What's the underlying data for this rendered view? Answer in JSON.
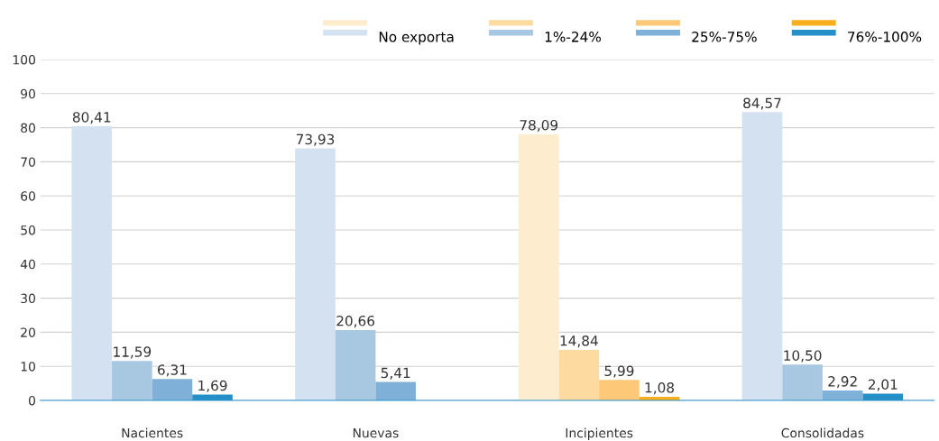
{
  "chart_data": {
    "type": "bar",
    "categories": [
      "Nacientes",
      "Nuevas",
      "Incipientes",
      "Consolidadas"
    ],
    "series": [
      {
        "name": "No exporta",
        "color": "#d3e1f0",
        "colors": [
          "#d3e1f0",
          "#d3e1f0",
          "#fdeccd",
          "#d3e1f0"
        ],
        "values": [
          80.41,
          73.93,
          78.09,
          84.57
        ],
        "value_labels": [
          "80,41",
          "73,93",
          "78,09",
          "84,57"
        ]
      },
      {
        "name": "1%-24%",
        "color": "#a8c8e2",
        "colors": [
          "#a8c8e2",
          "#a8c8e2",
          "#fddba0",
          "#a8c8e2"
        ],
        "values": [
          11.59,
          20.66,
          14.84,
          10.5
        ],
        "value_labels": [
          "11,59",
          "20,66",
          "14,84",
          "10,50"
        ]
      },
      {
        "name": "25%-75%",
        "color": "#7fb0d8",
        "colors": [
          "#7fb0d8",
          "#7fb0d8",
          "#fdc978",
          "#7fb0d8"
        ],
        "values": [
          6.31,
          5.41,
          5.99,
          2.92
        ],
        "value_labels": [
          "6,31",
          "5,41",
          "5,99",
          "2,92"
        ]
      },
      {
        "name": "76%-100%",
        "color": "#2590c8",
        "colors": [
          "#2590c8",
          "#2590c8",
          "#f9ae1e",
          "#2590c8"
        ],
        "values": [
          1.69,
          null,
          1.08,
          2.01
        ],
        "value_labels": [
          "1,69",
          null,
          "1,08",
          "2,01"
        ]
      }
    ],
    "ylim": [
      0,
      100
    ],
    "yticks": [
      0,
      10,
      20,
      30,
      40,
      50,
      60,
      70,
      80,
      90,
      100
    ],
    "grid": "y",
    "legend": "top right"
  }
}
